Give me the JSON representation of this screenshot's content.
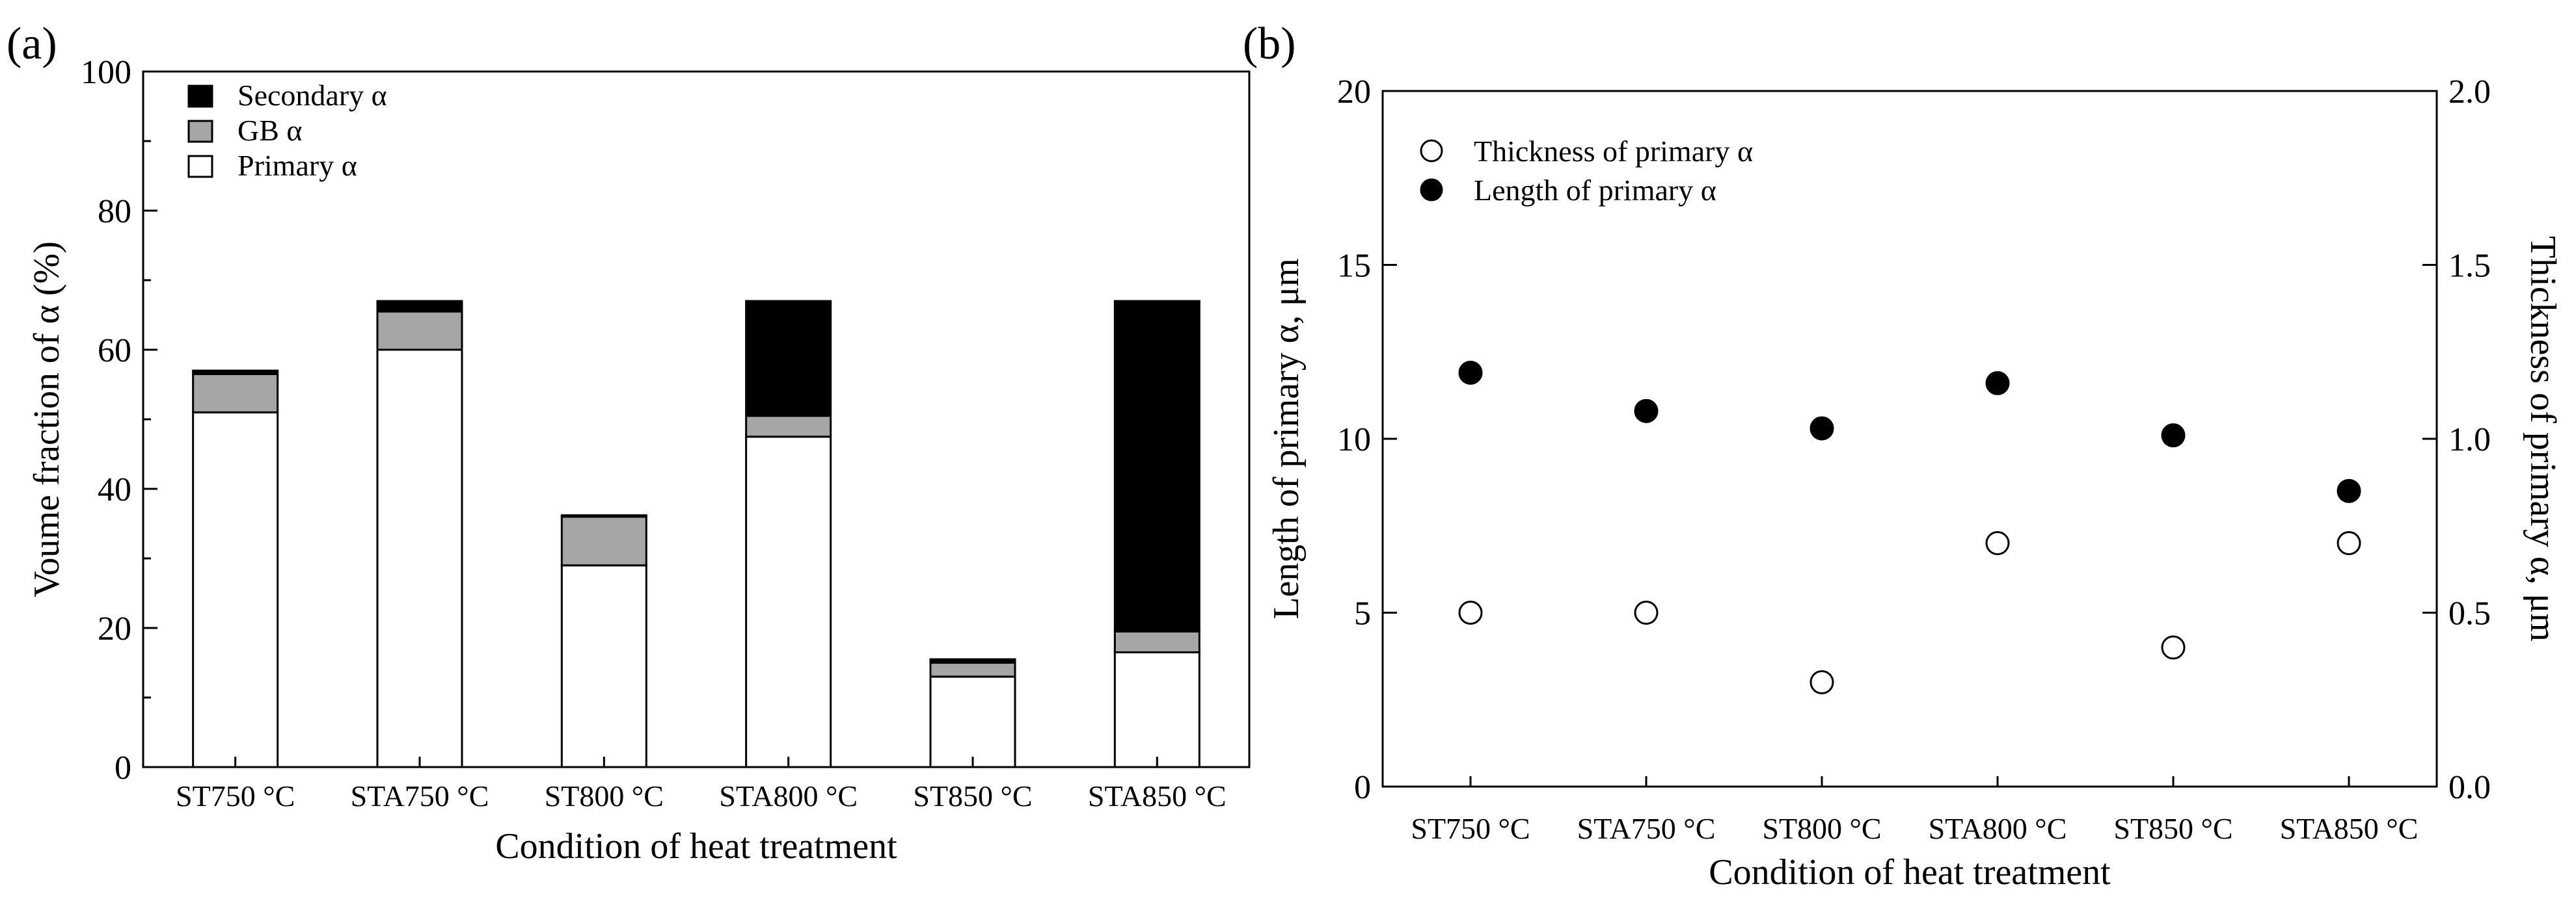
{
  "chart_data": [
    {
      "panel_label": "(a)",
      "type": "bar",
      "stacked": true,
      "categories": [
        "ST750 °C",
        "STA750 °C",
        "ST800 °C",
        "STA800 °C",
        "ST850 °C",
        "STA850 °C"
      ],
      "series": [
        {
          "name": "Primary α",
          "color": "#ffffff",
          "values": [
            51,
            60,
            29,
            47.5,
            13,
            16.5
          ]
        },
        {
          "name": "GB α",
          "color": "#a6a6a6",
          "values": [
            5.5,
            5.5,
            7,
            3,
            2,
            3
          ]
        },
        {
          "name": "Secondary α",
          "color": "#000000",
          "values": [
            0.5,
            1.5,
            0.2,
            16.5,
            0.5,
            47.5
          ]
        }
      ],
      "xlabel": "Condition of heat treatment",
      "ylabel": "Voume fraction of α (%)",
      "ylim": [
        0,
        100
      ],
      "yticks": [
        0,
        20,
        40,
        60,
        80,
        100
      ],
      "legend_entries": [
        "Secondary α",
        "GB α",
        "Primary α"
      ],
      "legend_position": "top-left"
    },
    {
      "panel_label": "(b)",
      "type": "scatter",
      "categories": [
        "ST750 °C",
        "STA750 °C",
        "ST800 °C",
        "STA800 °C",
        "ST850 °C",
        "STA850 °C"
      ],
      "series": [
        {
          "name": "Thickness of primary  α",
          "marker": "open-circle",
          "axis": "right",
          "values": [
            0.5,
            0.5,
            0.3,
            0.7,
            0.4,
            0.7
          ]
        },
        {
          "name": "Length of primary α",
          "marker": "filled-circle",
          "axis": "left",
          "values": [
            11.9,
            10.8,
            10.3,
            11.6,
            10.1,
            8.5
          ]
        }
      ],
      "xlabel": "Condition of heat treatment",
      "ylabel": "Length of primary α,  μm",
      "ylabel_right": "Thickness of primary α,  μm",
      "ylim": [
        0,
        20
      ],
      "ylim_right": [
        0,
        2.0
      ],
      "yticks": [
        "0",
        "5",
        "10",
        "15",
        "20"
      ],
      "yticks_right": [
        "0.0",
        "0.5",
        "1.0",
        "1.5",
        "2.0"
      ],
      "legend_entries": [
        "Thickness of primary  α",
        "Length of primary α"
      ],
      "legend_position": "top-left"
    }
  ]
}
